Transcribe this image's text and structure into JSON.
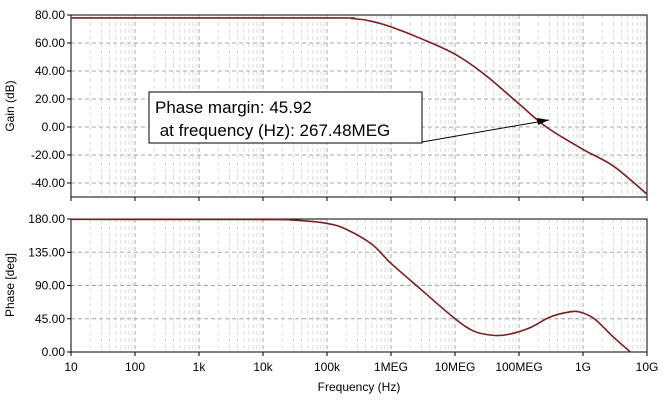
{
  "chart_data": [
    {
      "type": "line",
      "scale_x": "log",
      "ylabel": "Gain (dB)",
      "xlim": [
        10,
        10000000000
      ],
      "ylim": [
        -50,
        80
      ],
      "yticks": [
        80,
        60,
        40,
        20,
        0,
        -20,
        -40
      ],
      "ytick_labels": [
        "80.00",
        "60.00",
        "40.00",
        "20.00",
        "0.00",
        "-20.00",
        "-40.00"
      ],
      "grid": true,
      "series": [
        {
          "name": "Gain",
          "color": "#7a1f1f",
          "x": [
            10,
            100000,
            250000,
            500000,
            1000000,
            3000000,
            10000000,
            30000000,
            100000000,
            267480000,
            1000000000,
            3000000000,
            10000000000
          ],
          "y": [
            77.9,
            77.9,
            77.5,
            75.5,
            71.5,
            63,
            52,
            37,
            16.5,
            0,
            -16,
            -28,
            -48
          ]
        }
      ],
      "annotation": {
        "line1": "Phase margin: 45.92",
        "line2": " at frequency (Hz): 267.48MEG",
        "target_x": 267480000,
        "target_y": 0
      }
    },
    {
      "type": "line",
      "scale_x": "log",
      "xlabel": "Frequency (Hz)",
      "ylabel": "Phase [deg]",
      "xlim": [
        10,
        10000000000
      ],
      "ylim": [
        0,
        180
      ],
      "yticks": [
        180,
        135,
        90,
        45,
        0
      ],
      "ytick_labels": [
        "180.00",
        "135.00",
        "90.00",
        "45.00",
        "0.00"
      ],
      "xticks": [
        10,
        100,
        1000,
        10000,
        100000,
        1000000,
        10000000,
        100000000,
        1000000000,
        10000000000
      ],
      "xtick_labels": [
        "10",
        "100",
        "1k",
        "10k",
        "100k",
        "1MEG",
        "10MEG",
        "100MEG",
        "1G",
        "10G"
      ],
      "grid": true,
      "series": [
        {
          "name": "Phase",
          "color": "#7a1f1f",
          "x": [
            10,
            10000,
            30000,
            100000,
            200000,
            500000,
            1000000,
            3000000,
            10000000,
            20000000,
            40000000,
            70000000,
            150000000,
            300000000,
            600000000,
            900000000,
            1500000000,
            3000000000,
            5500000000
          ],
          "y": [
            179.5,
            179.3,
            178.5,
            174,
            166,
            146,
            120,
            84,
            45,
            28,
            22.5,
            24,
            33,
            47,
            54,
            54,
            45,
            20,
            0
          ]
        }
      ]
    }
  ]
}
